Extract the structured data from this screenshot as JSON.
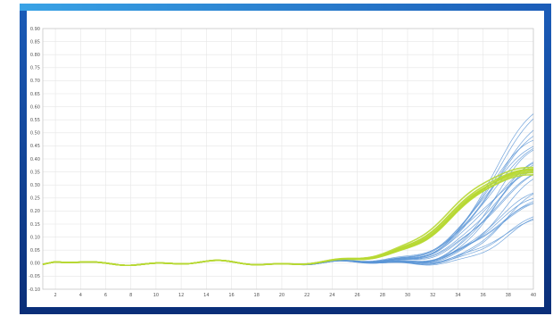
{
  "colors": {
    "frame_top": "#1b5cb8",
    "frame_bottom": "#0a2e78",
    "frame_accent": "#39a3e6",
    "gridline": "#e6e6e6",
    "series_green": "#b7d833",
    "series_blue": "#5b95d6"
  },
  "chart_data": {
    "type": "line",
    "title": "",
    "xlabel": "",
    "ylabel": "",
    "xlim": [
      1,
      40
    ],
    "ylim": [
      -0.1,
      0.9
    ],
    "x_ticks": [
      2,
      4,
      6,
      8,
      10,
      12,
      14,
      16,
      18,
      20,
      22,
      24,
      26,
      28,
      30,
      32,
      34,
      36,
      38,
      40
    ],
    "y_ticks": [
      -0.1,
      -0.05,
      0.0,
      0.05,
      0.1,
      0.15,
      0.2,
      0.25,
      0.3,
      0.35,
      0.4,
      0.45,
      0.5,
      0.55,
      0.6,
      0.65,
      0.7,
      0.75,
      0.8,
      0.85,
      0.9
    ],
    "grid": true,
    "legend": "none",
    "series_groups": [
      {
        "color": "green",
        "count": 8,
        "curve": {
          "baseline": 0.0,
          "plateau": 0.37,
          "midpoint": 33.5,
          "slope": 0.45
        },
        "x": [
          1,
          5,
          10,
          15,
          20,
          25,
          28,
          30,
          32,
          34,
          36,
          38,
          40
        ],
        "values": [
          -0.01,
          0.0,
          0.01,
          0.0,
          0.0,
          0.0,
          0.01,
          0.04,
          0.12,
          0.22,
          0.29,
          0.33,
          0.35
        ]
      },
      {
        "color": "blue",
        "count": 25,
        "curve": {
          "baseline": 0.0,
          "plateau_min": 0.2,
          "plateau_max": 0.7,
          "midpoint_min": 36,
          "midpoint_max": 38.5,
          "slope": 0.55
        },
        "x": [
          1,
          5,
          10,
          15,
          20,
          25,
          30,
          32,
          34,
          36,
          38,
          40
        ],
        "values_low": [
          -0.01,
          0.0,
          0.01,
          0.0,
          0.0,
          0.0,
          0.0,
          0.01,
          0.03,
          0.07,
          0.12,
          0.17
        ],
        "values_high": [
          -0.02,
          0.0,
          0.01,
          0.0,
          0.0,
          0.0,
          0.01,
          0.05,
          0.17,
          0.35,
          0.53,
          0.62
        ]
      }
    ]
  }
}
